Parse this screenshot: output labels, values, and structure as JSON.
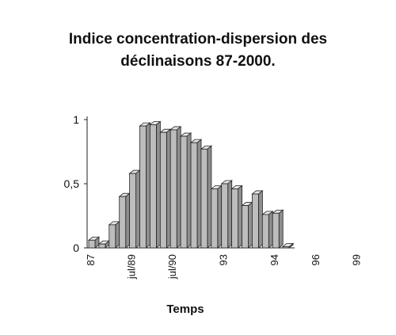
{
  "title_line1": "Indice concentration-dispersion des",
  "title_line2": "déclinaisons 87-2000.",
  "chart_data": {
    "type": "bar",
    "style": "3d",
    "title": "Indice concentration-dispersion des déclinaisons 87-2000.",
    "xlabel": "Temps",
    "ylabel": "",
    "ylim": [
      0,
      1
    ],
    "yticks": [
      "0",
      "0,5",
      "1"
    ],
    "xtick_labels": [
      "87",
      "jul/89",
      "jul/90",
      "93",
      "94",
      "96",
      "99"
    ],
    "xtick_index": [
      0,
      4,
      8,
      13,
      18,
      22,
      26
    ],
    "grid": false,
    "bar_color": "#bdbdbd",
    "values": [
      0.06,
      0.03,
      0.18,
      0.4,
      0.58,
      0.95,
      0.96,
      0.9,
      0.92,
      0.87,
      0.82,
      0.77,
      0.46,
      0.5,
      0.46,
      0.33,
      0.42,
      0.26,
      0.27,
      0.01
    ]
  }
}
